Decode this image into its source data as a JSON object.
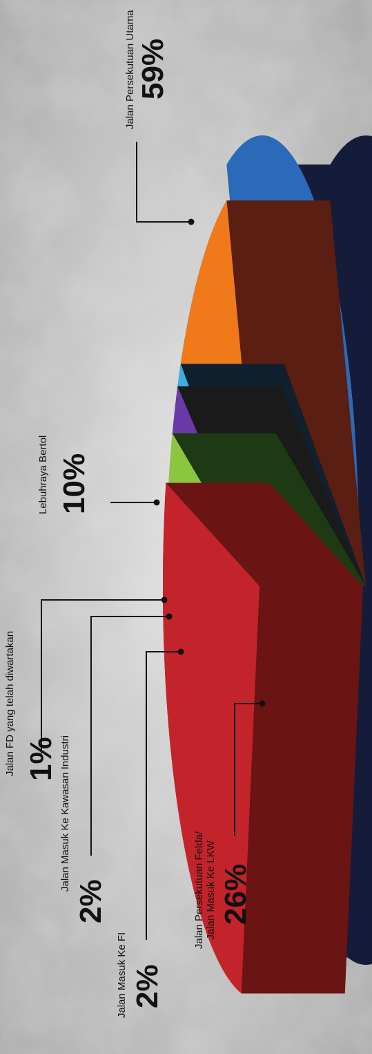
{
  "chart_data": {
    "type": "pie",
    "title": "",
    "slices": [
      {
        "label": "Jalan Persekutuan Utama",
        "value": 59,
        "value_label": "59%",
        "color": "#2a6ab8",
        "side_color": "#141c3a"
      },
      {
        "label": "Jalan Persekutuan Felda/ Jalan Masuk Ke LKW",
        "label_lines": [
          "Jalan Persekutuan Felda/",
          "Jalan Masuk Ke LKW"
        ],
        "value": 26,
        "value_label": "26%",
        "color": "#c3232a",
        "side_color": "#6b1414"
      },
      {
        "label": "Lebuhraya Bertol",
        "value": 10,
        "value_label": "10%",
        "color": "#f07a1a",
        "side_color": "#5a1e12"
      },
      {
        "label": "Jalan Masuk Ke FI",
        "value": 2,
        "value_label": "2%",
        "color": "#8cc63f",
        "side_color": "#1e3a14"
      },
      {
        "label": "Jalan Masuk Ke Kawasan Industri",
        "value": 2,
        "value_label": "2%",
        "color": "#6a3aa8",
        "side_color": "#1a1a1a"
      },
      {
        "label": "Jalan FD yang telah diwartakan",
        "value": 1,
        "value_label": "1%",
        "color": "#3ab0e0",
        "side_color": "#10202e"
      }
    ]
  }
}
